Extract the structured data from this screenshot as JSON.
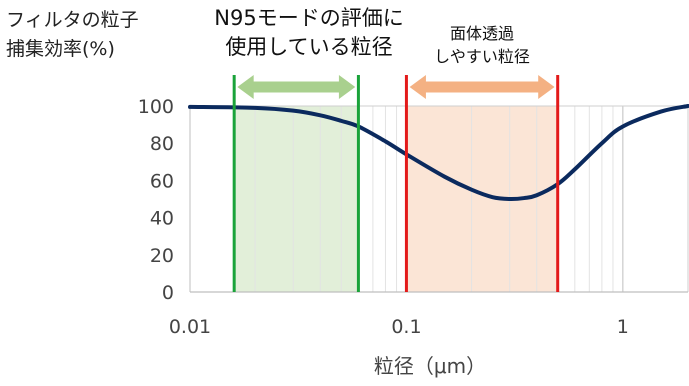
{
  "chart_data": {
    "type": "line",
    "ylabel_lines": [
      "フィルタの粒子",
      "捕集効率(%)"
    ],
    "xlabel": "粒径（μm）",
    "x_scale": "log",
    "xlim": [
      0.01,
      2
    ],
    "ylim": [
      0,
      100
    ],
    "x_tick_labels": [
      "0.01",
      "0.1",
      "1"
    ],
    "y_tick_labels": [
      "0",
      "20",
      "40",
      "60",
      "80",
      "100"
    ],
    "grid": true,
    "series": [
      {
        "color": "#0b2a5e",
        "x": [
          0.01,
          0.02,
          0.03,
          0.04,
          0.05,
          0.06,
          0.08,
          0.1,
          0.15,
          0.2,
          0.25,
          0.3,
          0.35,
          0.4,
          0.5,
          0.6,
          0.8,
          1.0,
          1.5,
          2.0
        ],
        "y": [
          99.5,
          99,
          97.5,
          95,
          92,
          89,
          81,
          74,
          62,
          55,
          51,
          50,
          50.5,
          52,
          58,
          66,
          80,
          89,
          97,
          100
        ]
      }
    ],
    "regions": [
      {
        "label_lines": [
          "N95モードの評価に",
          "使用している粒径"
        ],
        "x_range": [
          0.016,
          0.06
        ],
        "fill_color": "#e2efd9",
        "border_color": "#1aa33a",
        "arrow_color": "#a9d08e"
      },
      {
        "label_lines": [
          "面体透過",
          "しやすい粒径"
        ],
        "x_range": [
          0.1,
          0.5
        ],
        "fill_color": "#fbe5d6",
        "border_color": "#e31a1a",
        "arrow_color": "#f4b183"
      }
    ]
  }
}
